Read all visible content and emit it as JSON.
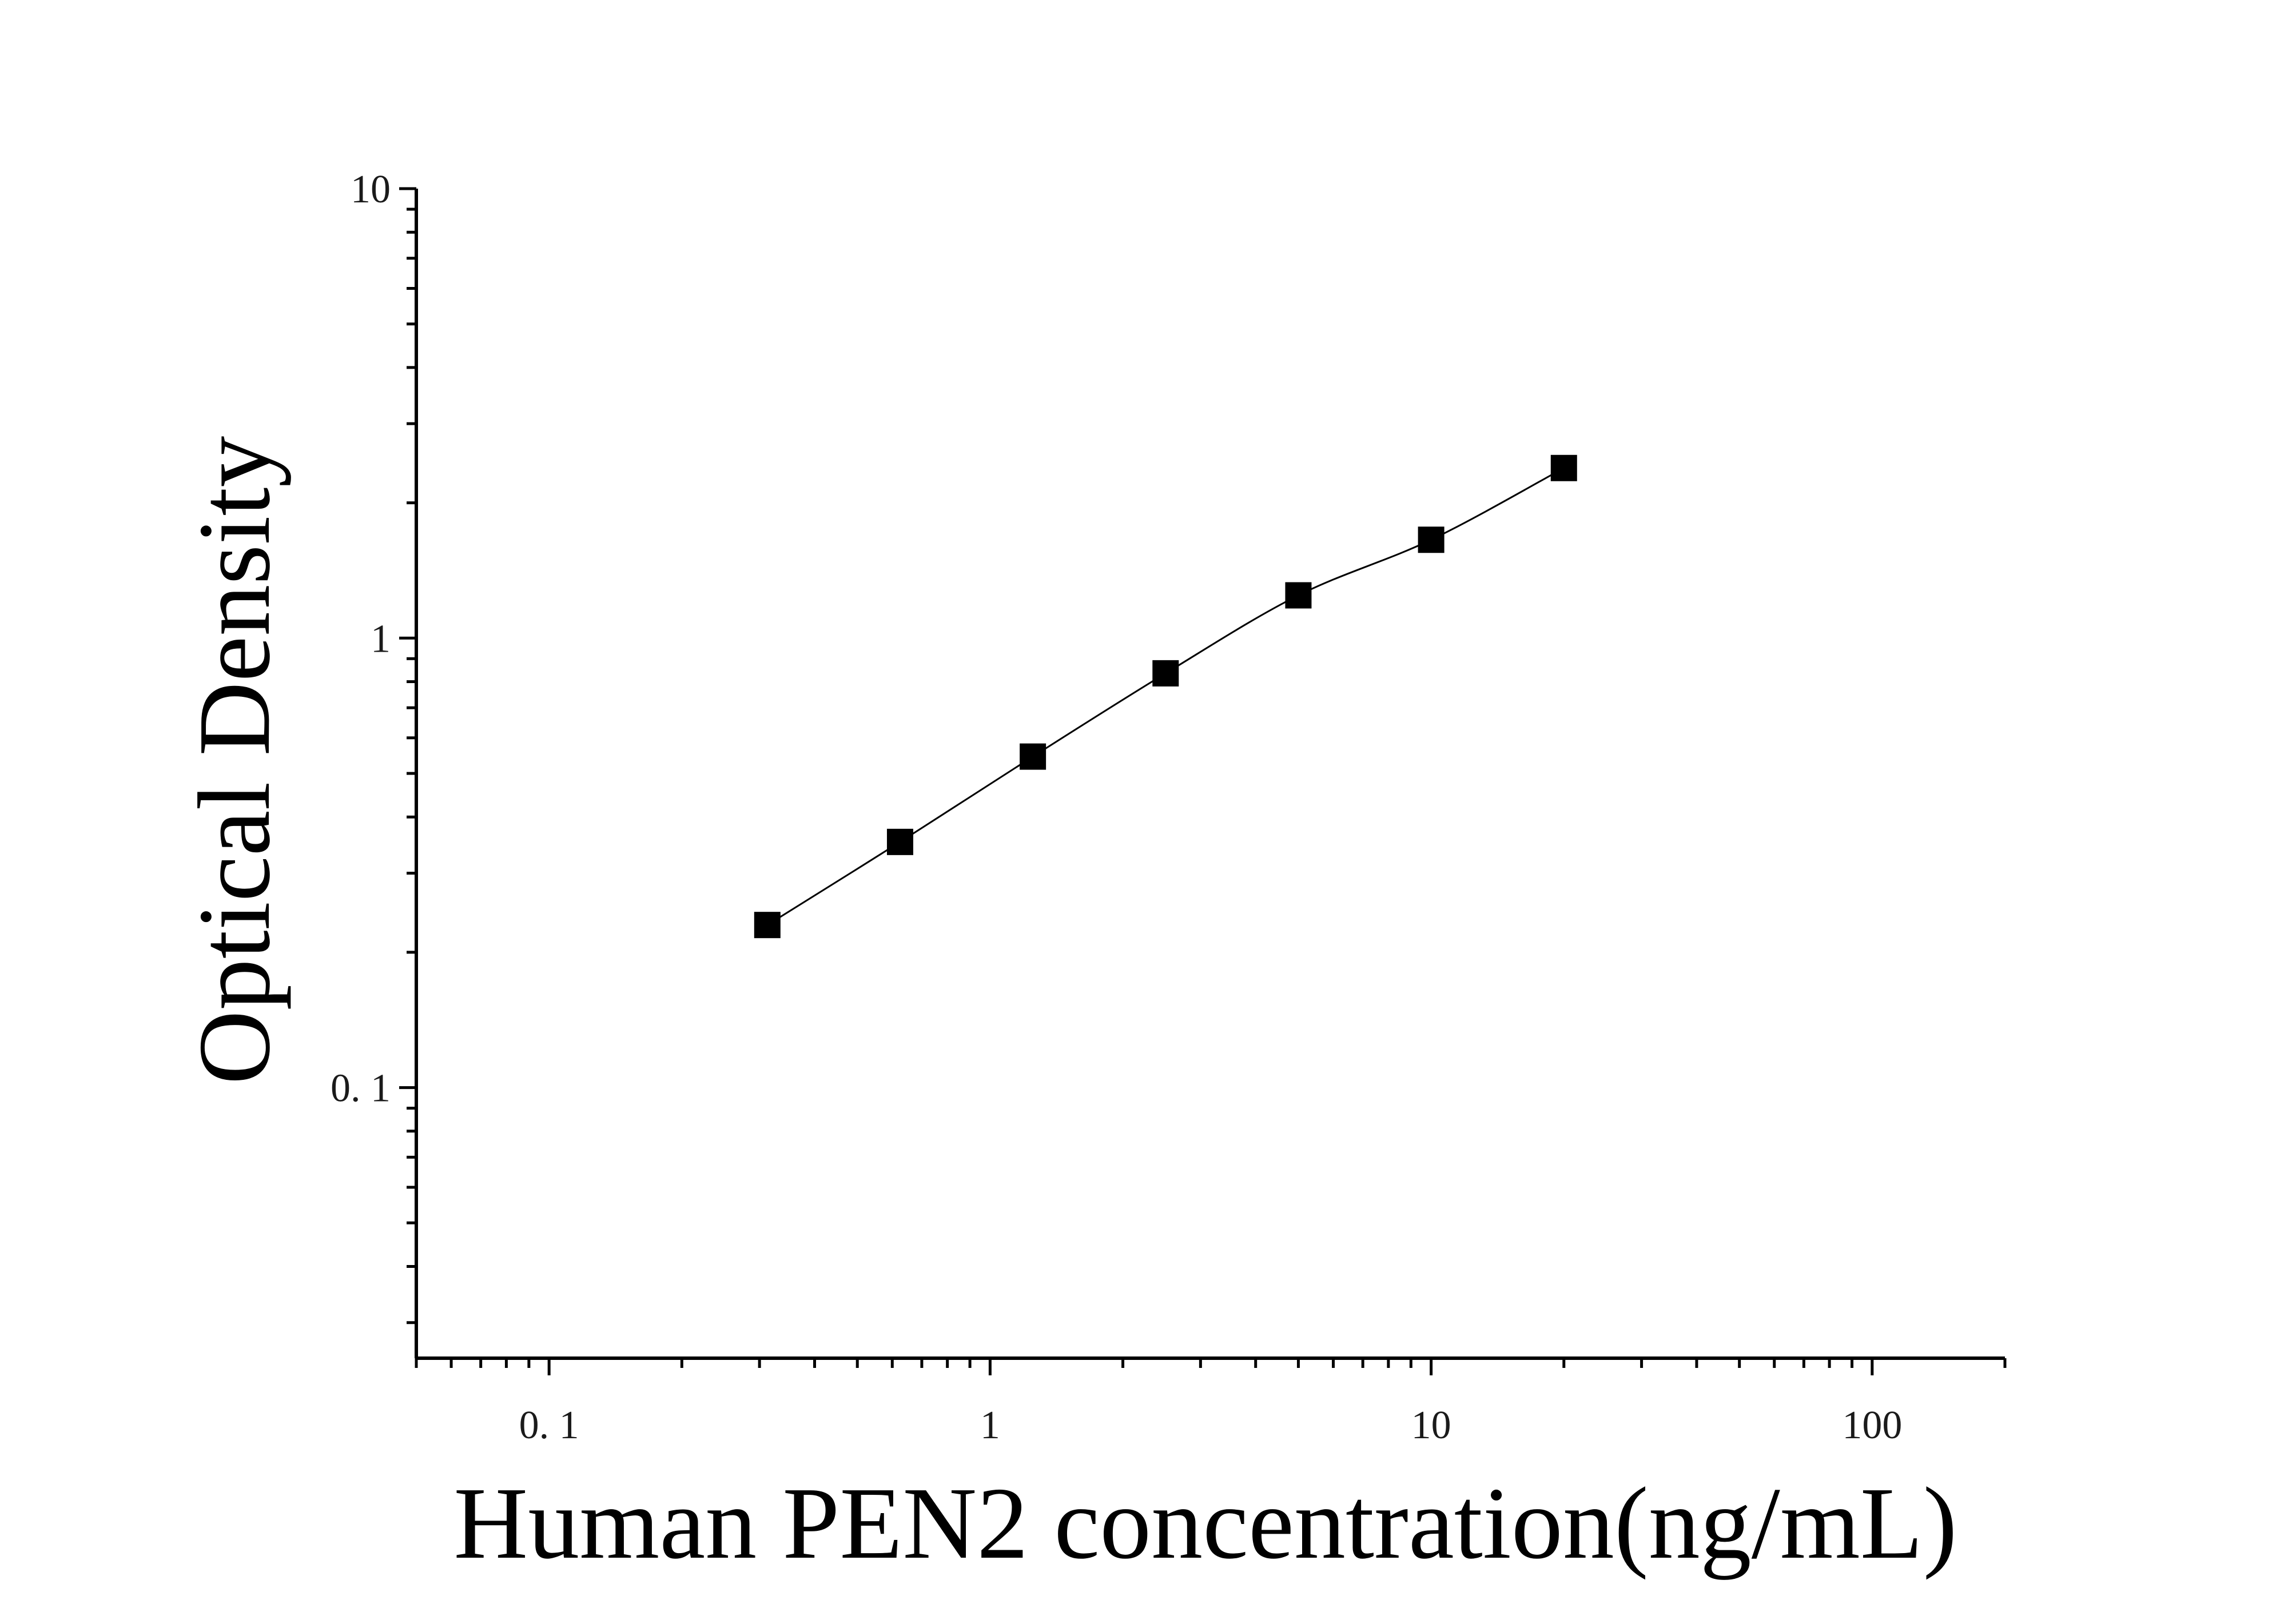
{
  "chart_data": {
    "type": "scatter",
    "xlabel": "Human PEN2 concentration(ng/mL)",
    "ylabel": "Optical Density",
    "x_scale": "log",
    "y_scale": "log",
    "xlim": [
      0.05,
      200
    ],
    "ylim": [
      0.025,
      10
    ],
    "x_tick_labels": [
      "0. 1",
      "1",
      "10",
      "100"
    ],
    "x_tick_values": [
      0.1,
      1,
      10,
      100
    ],
    "y_tick_labels": [
      "10",
      "1",
      "0. 1"
    ],
    "y_tick_values": [
      10,
      1,
      0.1
    ],
    "grid": false,
    "marker": "square",
    "marker_color": "#000000",
    "line_color": "#000000",
    "series": [
      {
        "x": [
          0.3125,
          0.625,
          1.25,
          2.5,
          5,
          10,
          20
        ],
        "y": [
          0.23,
          0.352,
          0.545,
          0.835,
          1.245,
          1.655,
          2.39
        ]
      }
    ]
  }
}
